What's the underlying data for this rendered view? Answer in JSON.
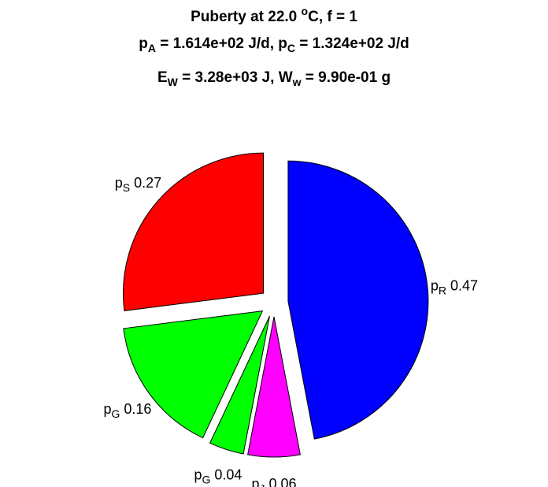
{
  "chart_data": {
    "type": "pie",
    "title": [
      [
        "Puberty at 22.0 ",
        {
          "sup": "o"
        },
        "C, f = 1"
      ],
      [
        {
          "text": "p",
          "sub": "A"
        },
        " = 1.614e+02 J/d,  ",
        {
          "text": "p",
          "sub": "C"
        },
        " = 1.324e+02 J/d"
      ],
      [
        {
          "text": "E",
          "sub": "W"
        },
        " = 3.28e+03 J, ",
        {
          "text": "W",
          "sub": "w"
        },
        " = 9.90e-01 g"
      ]
    ],
    "categories": [
      {
        "text": "p",
        "sub": "R"
      },
      {
        "text": "p",
        "sub": "J"
      },
      {
        "text": "p",
        "sub": "G"
      },
      {
        "text": "p",
        "sub": "G"
      },
      {
        "text": "p",
        "sub": "S"
      }
    ],
    "values": [
      0.47,
      0.06,
      0.04,
      0.16,
      0.27
    ],
    "colors": [
      "#0000ff",
      "#ff00ff",
      "#00ff00",
      "#00ff00",
      "#ff0000"
    ]
  }
}
